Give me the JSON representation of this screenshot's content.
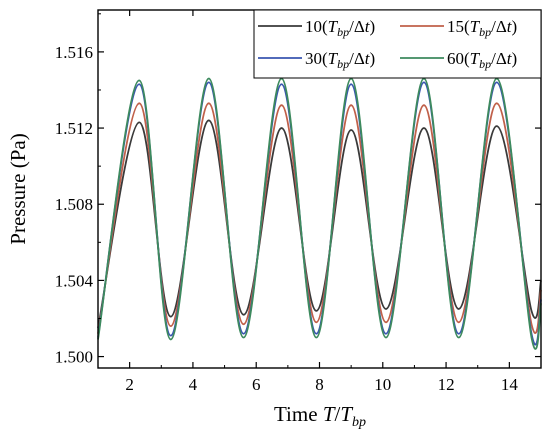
{
  "chart_data": {
    "type": "line",
    "xlabel": "Time T/T_bp",
    "ylabel": "Pressure (Pa)",
    "xlim": [
      1.0,
      15.0
    ],
    "ylim": [
      1.4994,
      1.5182
    ],
    "x_ticks": [
      2,
      4,
      6,
      8,
      10,
      12,
      14
    ],
    "y_ticks": [
      1.5,
      1.504,
      1.508,
      1.512,
      1.516
    ],
    "x_tick_labels": [
      "2",
      "4",
      "6",
      "8",
      "10",
      "12",
      "14"
    ],
    "y_tick_labels": [
      "1.500",
      "1.504",
      "1.508",
      "1.512",
      "1.516"
    ],
    "grid": false,
    "legend_position": "top-right",
    "series": [
      {
        "name": "10(T_bp/Δt)",
        "color": "#3a3a3a",
        "x": [
          1.0,
          2.3,
          3.3,
          4.5,
          5.6,
          6.8,
          7.9,
          9.0,
          10.1,
          11.3,
          12.4,
          13.6,
          14.7,
          15.0
        ],
        "y": [
          1.5015,
          1.5123,
          1.5021,
          1.5124,
          1.5022,
          1.512,
          1.5024,
          1.5119,
          1.5025,
          1.512,
          1.5025,
          1.5121,
          1.5024,
          1.504
        ]
      },
      {
        "name": "15(T_bp/Δt)",
        "color": "#c0604a",
        "x": [
          1.0,
          2.3,
          3.3,
          4.5,
          5.6,
          6.8,
          7.9,
          9.0,
          10.1,
          11.3,
          12.4,
          13.6,
          14.7,
          15.0
        ],
        "y": [
          1.5012,
          1.5133,
          1.5016,
          1.5133,
          1.5017,
          1.5132,
          1.5018,
          1.5132,
          1.5018,
          1.5132,
          1.5018,
          1.5133,
          1.5017,
          1.5035
        ]
      },
      {
        "name": "30(T_bp/Δt)",
        "color": "#3a56b0",
        "x": [
          1.0,
          2.3,
          3.3,
          4.5,
          5.6,
          6.8,
          7.9,
          9.0,
          10.1,
          11.3,
          12.4,
          13.6,
          14.7,
          15.0
        ],
        "y": [
          1.501,
          1.5143,
          1.5011,
          1.5144,
          1.5012,
          1.5143,
          1.5012,
          1.5143,
          1.5012,
          1.5144,
          1.5012,
          1.5144,
          1.5012,
          1.503
        ]
      },
      {
        "name": "60(T_bp/Δt)",
        "color": "#3d8a5e",
        "x": [
          1.0,
          2.3,
          3.3,
          4.5,
          5.6,
          6.8,
          7.9,
          9.0,
          10.1,
          11.3,
          12.4,
          13.6,
          14.7,
          15.0
        ],
        "y": [
          1.5009,
          1.5145,
          1.5009,
          1.5146,
          1.501,
          1.5146,
          1.501,
          1.5146,
          1.501,
          1.5146,
          1.501,
          1.5146,
          1.501,
          1.5028
        ]
      }
    ]
  },
  "legend_labels": {
    "s0": {
      "num": "10(",
      "T": "T",
      "sub": "bp",
      "rest": "/Δ",
      "t": "t",
      "close": ")"
    },
    "s1": {
      "num": "15(",
      "T": "T",
      "sub": "bp",
      "rest": "/Δ",
      "t": "t",
      "close": ")"
    },
    "s2": {
      "num": "30(",
      "T": "T",
      "sub": "bp",
      "rest": "/Δ",
      "t": "t",
      "close": ")"
    },
    "s3": {
      "num": "60(",
      "T": "T",
      "sub": "bp",
      "rest": "/Δ",
      "t": "t",
      "close": ")"
    }
  },
  "x_title": {
    "prefix": "Time ",
    "T": "T",
    "slash": "/",
    "T2": "T",
    "sub": "bp"
  },
  "y_title": "Pressure (Pa)"
}
